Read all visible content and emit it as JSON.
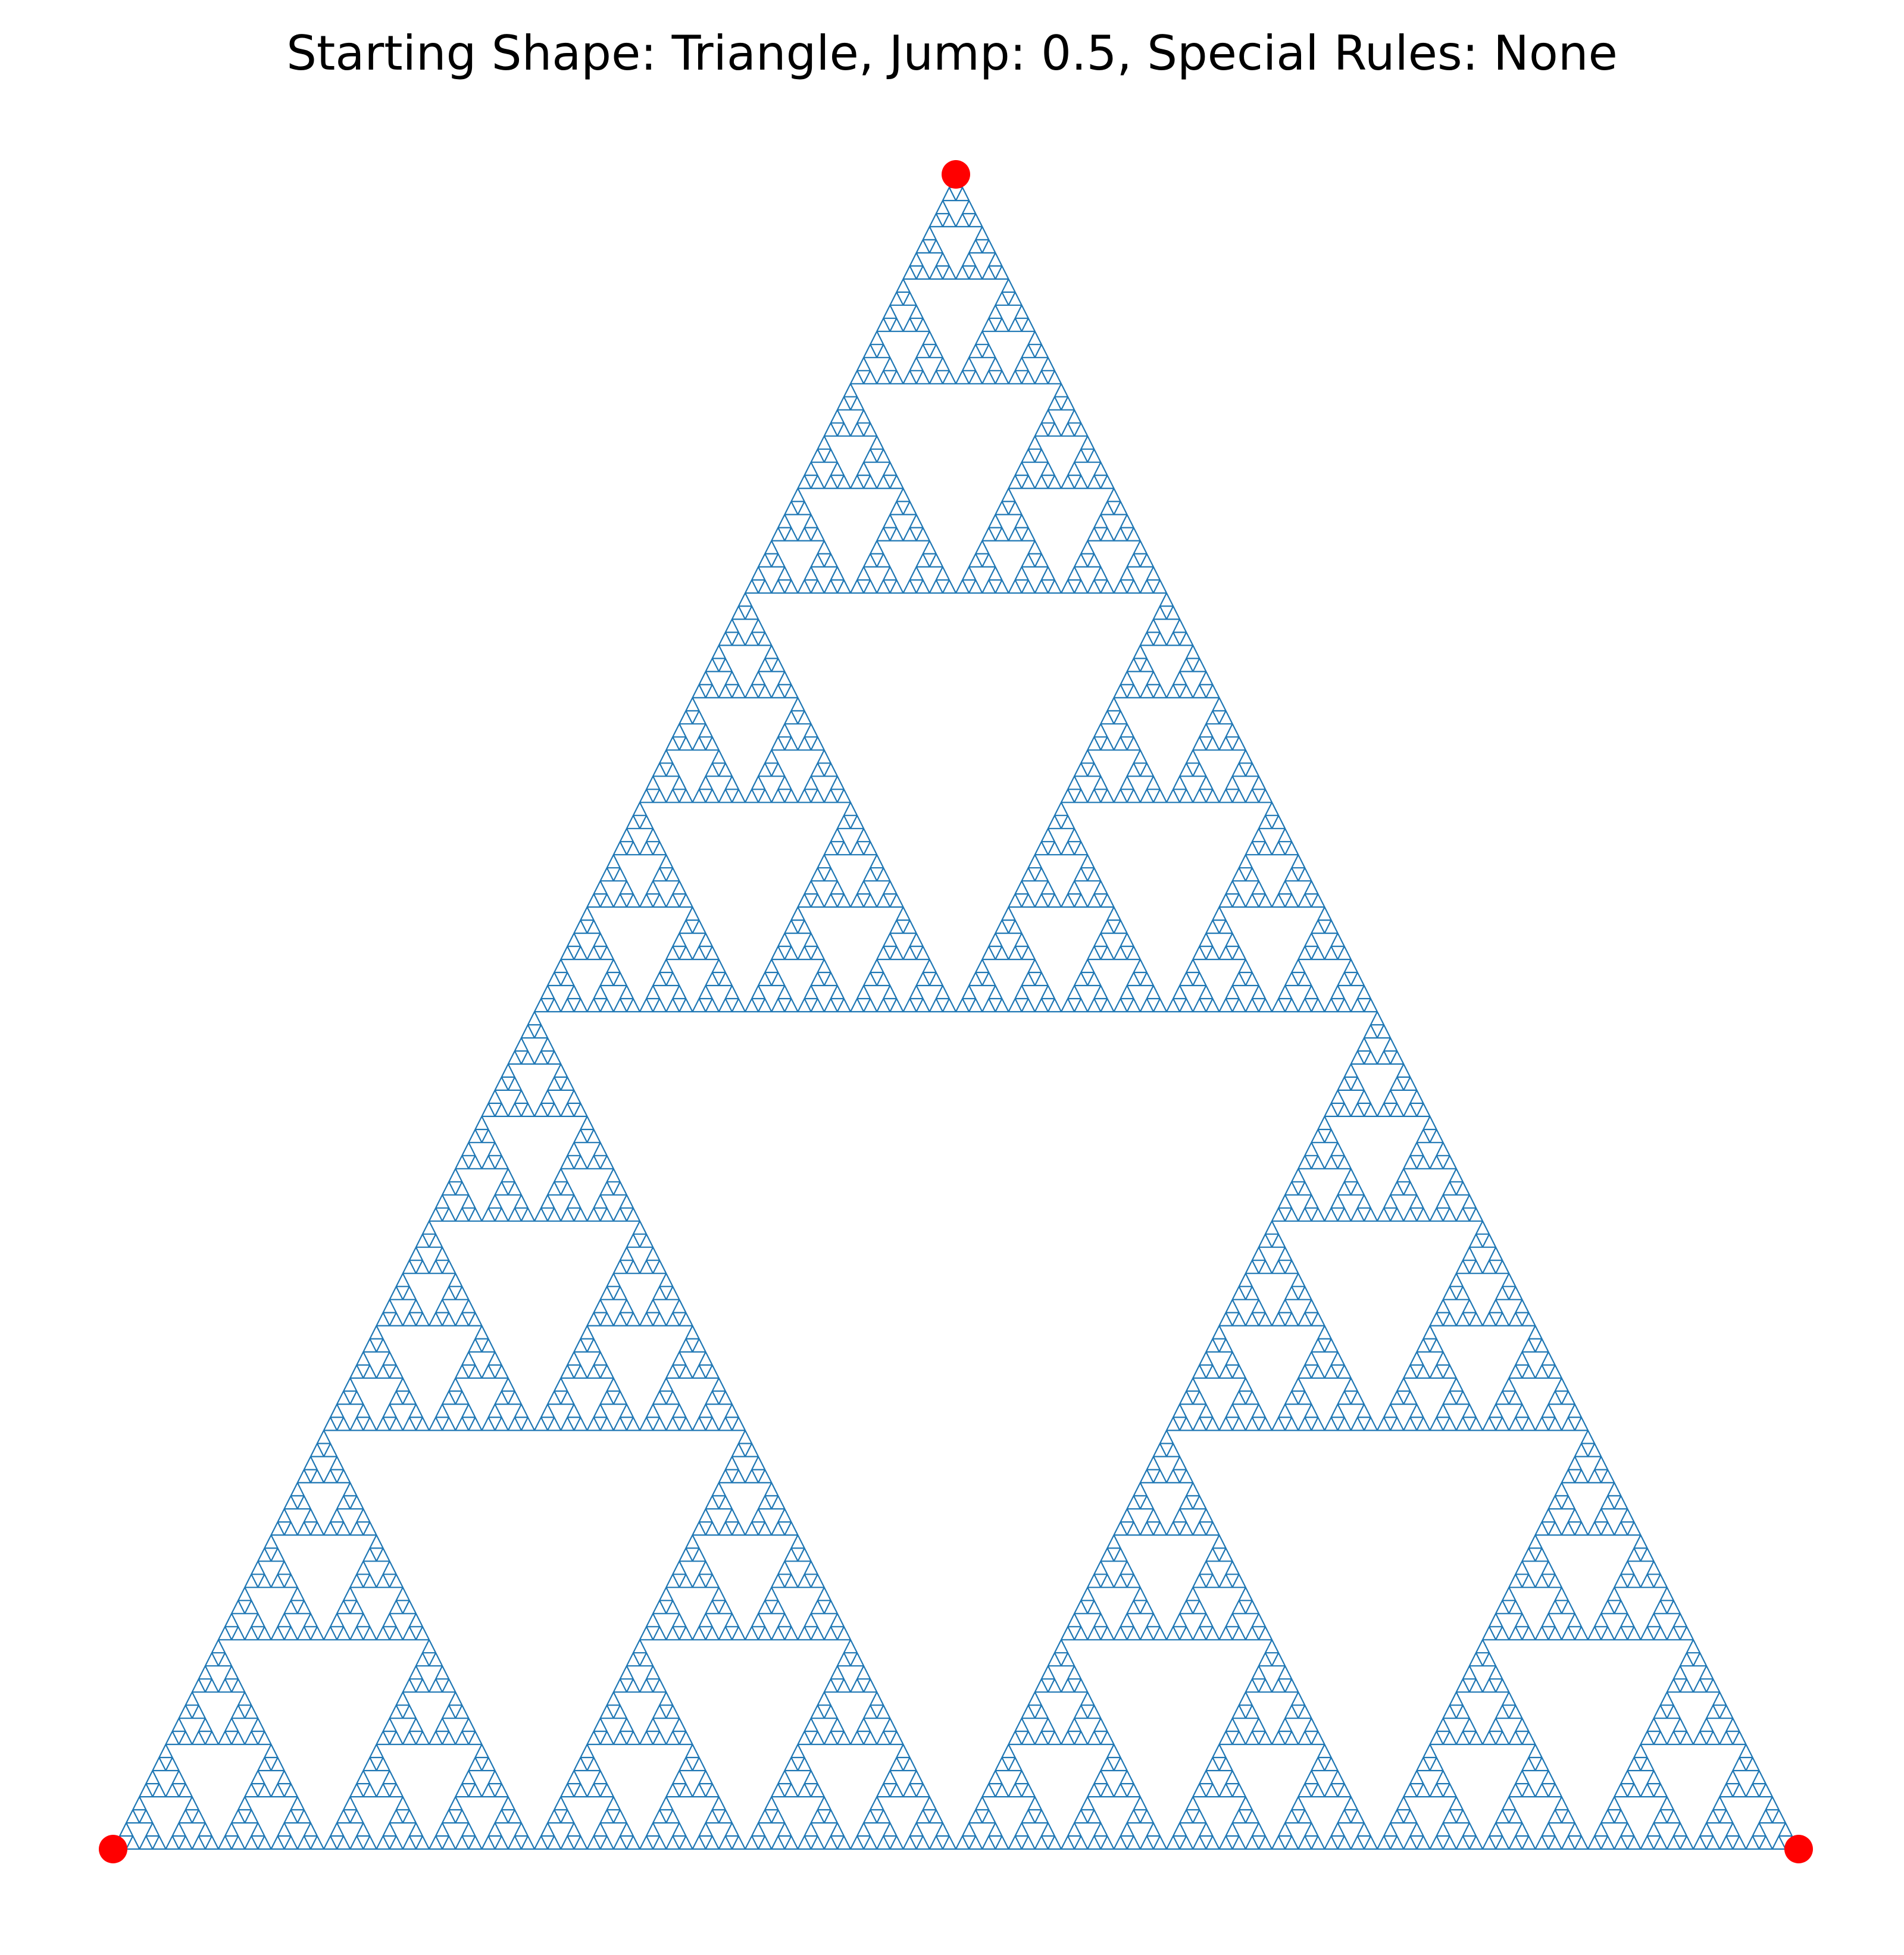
{
  "title": "Starting Shape: Triangle, Jump: 0.5, Special Rules: None",
  "figure": {
    "shape": "Triangle",
    "jump": 0.5,
    "special_rules": "None",
    "vertex_count": 3,
    "vertex_color": "#ff0000",
    "point_color": "#1f77b4",
    "background": "#ffffff",
    "axes_visible": false
  }
}
